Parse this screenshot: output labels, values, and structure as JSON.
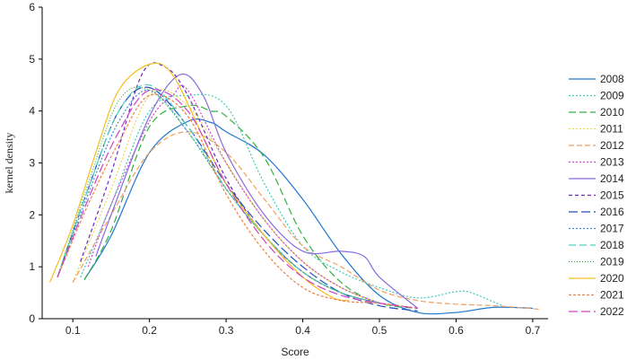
{
  "chart_data": {
    "type": "line",
    "xlabel": "Score",
    "ylabel": "kernel density",
    "xlim": [
      0.06,
      0.72
    ],
    "ylim": [
      0,
      6
    ],
    "x_ticks": [
      "0.1",
      "0.2",
      "0.3",
      "0.4",
      "0.5",
      "0.6",
      "0.7"
    ],
    "y_ticks": [
      "0",
      "1",
      "2",
      "3",
      "4",
      "5",
      "6"
    ],
    "grid": false,
    "legend_position": "right",
    "series": [
      {
        "name": "2008",
        "color": "#1f77d0",
        "dash": "",
        "x": [
          0.115,
          0.15,
          0.2,
          0.25,
          0.28,
          0.3,
          0.35,
          0.4,
          0.45,
          0.5,
          0.55,
          0.6,
          0.65,
          0.7
        ],
        "y": [
          0.75,
          1.6,
          3.2,
          3.8,
          3.78,
          3.6,
          3.15,
          2.3,
          1.25,
          0.45,
          0.12,
          0.12,
          0.22,
          0.2
        ]
      },
      {
        "name": "2009",
        "color": "#40c9b8",
        "dash": "2,2",
        "x": [
          0.11,
          0.15,
          0.2,
          0.25,
          0.3,
          0.35,
          0.4,
          0.45,
          0.5,
          0.55,
          0.6,
          0.62,
          0.66
        ],
        "y": [
          0.8,
          2.2,
          4.0,
          4.3,
          4.1,
          2.6,
          1.4,
          0.9,
          0.6,
          0.4,
          0.52,
          0.5,
          0.25
        ]
      },
      {
        "name": "2010",
        "color": "#30b040",
        "dash": "8,4",
        "x": [
          0.115,
          0.15,
          0.2,
          0.25,
          0.28,
          0.3,
          0.35,
          0.4,
          0.45,
          0.5,
          0.55
        ],
        "y": [
          0.75,
          1.7,
          3.7,
          4.1,
          4.0,
          3.9,
          3.1,
          1.6,
          0.7,
          0.3,
          0.2
        ]
      },
      {
        "name": "2011",
        "color": "#e6d84a",
        "dash": "2,2",
        "x": [
          0.1,
          0.15,
          0.2,
          0.25,
          0.3,
          0.35,
          0.4,
          0.45,
          0.5,
          0.52
        ],
        "y": [
          0.7,
          2.5,
          4.3,
          4.1,
          3.0,
          1.9,
          1.1,
          0.6,
          0.3,
          0.25
        ]
      },
      {
        "name": "2012",
        "color": "#f0a060",
        "dash": "6,3",
        "x": [
          0.1,
          0.15,
          0.2,
          0.25,
          0.3,
          0.35,
          0.4,
          0.45,
          0.5,
          0.55,
          0.6,
          0.65,
          0.71
        ],
        "y": [
          0.7,
          2.0,
          3.2,
          3.6,
          3.2,
          2.3,
          1.4,
          1.0,
          0.55,
          0.35,
          0.28,
          0.25,
          0.18
        ]
      },
      {
        "name": "2013",
        "color": "#d040d0",
        "dash": "2,2",
        "x": [
          0.12,
          0.15,
          0.2,
          0.23,
          0.25,
          0.3,
          0.35,
          0.4,
          0.45,
          0.5
        ],
        "y": [
          1.0,
          2.2,
          3.8,
          4.3,
          4.4,
          3.0,
          1.9,
          1.1,
          0.6,
          0.3
        ]
      },
      {
        "name": "2014",
        "color": "#8a6be0",
        "dash": "",
        "x": [
          0.13,
          0.15,
          0.2,
          0.24,
          0.27,
          0.3,
          0.35,
          0.4,
          0.45,
          0.48,
          0.5,
          0.55
        ],
        "y": [
          1.2,
          2.0,
          3.9,
          4.7,
          4.3,
          3.2,
          2.0,
          1.3,
          1.3,
          1.2,
          0.8,
          0.2
        ]
      },
      {
        "name": "2015",
        "color": "#6a2ac0",
        "dash": "4,3",
        "x": [
          0.11,
          0.15,
          0.19,
          0.22,
          0.25,
          0.3,
          0.35,
          0.4,
          0.45,
          0.5
        ],
        "y": [
          1.1,
          2.8,
          4.7,
          4.85,
          4.3,
          2.7,
          1.6,
          0.9,
          0.5,
          0.3
        ]
      },
      {
        "name": "2016",
        "color": "#2050c0",
        "dash": "10,4",
        "x": [
          0.08,
          0.12,
          0.16,
          0.2,
          0.25,
          0.3,
          0.35,
          0.4,
          0.45,
          0.5,
          0.55
        ],
        "y": [
          0.8,
          2.5,
          4.0,
          4.45,
          3.7,
          2.6,
          1.7,
          1.0,
          0.5,
          0.25,
          0.15
        ]
      },
      {
        "name": "2017",
        "color": "#3d8ad8",
        "dash": "2,2",
        "x": [
          0.08,
          0.12,
          0.16,
          0.2,
          0.25,
          0.3,
          0.35,
          0.4,
          0.45,
          0.5
        ],
        "y": [
          0.8,
          2.4,
          3.8,
          4.4,
          3.6,
          2.5,
          1.6,
          0.9,
          0.5,
          0.3
        ]
      },
      {
        "name": "2018",
        "color": "#50d0c0",
        "dash": "8,4",
        "x": [
          0.08,
          0.12,
          0.16,
          0.2,
          0.25,
          0.3,
          0.35,
          0.4,
          0.45,
          0.5
        ],
        "y": [
          0.8,
          2.5,
          4.0,
          4.5,
          3.7,
          2.5,
          1.6,
          0.9,
          0.5,
          0.3
        ]
      },
      {
        "name": "2019",
        "color": "#40b040",
        "dash": "1,2",
        "x": [
          0.08,
          0.12,
          0.16,
          0.2,
          0.25,
          0.3,
          0.35,
          0.4,
          0.45,
          0.5
        ],
        "y": [
          0.8,
          2.6,
          4.2,
          4.4,
          3.6,
          2.5,
          1.6,
          0.9,
          0.5,
          0.3
        ]
      },
      {
        "name": "2020",
        "color": "#f0c020",
        "dash": "",
        "x": [
          0.07,
          0.1,
          0.13,
          0.16,
          0.2,
          0.23,
          0.27,
          0.3,
          0.35,
          0.4,
          0.44,
          0.46
        ],
        "y": [
          0.7,
          1.8,
          3.2,
          4.4,
          4.9,
          4.7,
          3.5,
          2.6,
          1.6,
          0.8,
          0.4,
          0.35
        ]
      },
      {
        "name": "2021",
        "color": "#f08040",
        "dash": "3,2",
        "x": [
          0.08,
          0.12,
          0.16,
          0.2,
          0.25,
          0.3,
          0.35,
          0.4,
          0.45,
          0.5,
          0.55
        ],
        "y": [
          0.8,
          2.2,
          3.4,
          4.3,
          3.9,
          2.4,
          1.3,
          0.6,
          0.35,
          0.3,
          0.2
        ]
      },
      {
        "name": "2022",
        "color": "#d040c0",
        "dash": "10,4",
        "x": [
          0.08,
          0.12,
          0.16,
          0.2,
          0.25,
          0.3,
          0.35,
          0.4,
          0.45,
          0.5,
          0.55
        ],
        "y": [
          0.8,
          2.3,
          3.6,
          4.4,
          4.0,
          2.6,
          1.5,
          0.8,
          0.45,
          0.3,
          0.2
        ]
      }
    ]
  }
}
